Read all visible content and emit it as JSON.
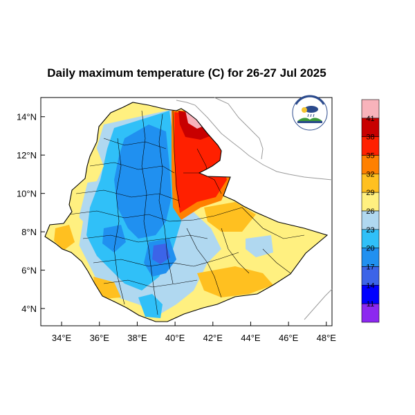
{
  "map": {
    "title": "Daily maximum temperature (C) for 26-27 Jul 2025",
    "x_ticks": [
      "34°E",
      "36°E",
      "38°E",
      "40°E",
      "42°E",
      "44°E",
      "46°E",
      "48°E"
    ],
    "y_ticks": [
      "14°N",
      "12°N",
      "10°N",
      "8°N",
      "6°N",
      "4°N"
    ],
    "x_tick_values": [
      34,
      36,
      38,
      40,
      42,
      44,
      46,
      48
    ],
    "y_tick_values": [
      14,
      12,
      10,
      8,
      6,
      4
    ],
    "lon_range": [
      32.9,
      48.3
    ],
    "lat_range": [
      3.1,
      15.0
    ],
    "colors": {
      "frame": "#000000",
      "boundary": "#000000",
      "neighbor_border": "#9a9a9a",
      "outside": "#ffffff"
    }
  },
  "legend": {
    "labels": [
      "41",
      "38",
      "35",
      "32",
      "29",
      "26",
      "23",
      "20",
      "17",
      "14",
      "11"
    ],
    "colors": [
      "#f8b3bb",
      "#c80000",
      "#ff2000",
      "#ff8000",
      "#ffc020",
      "#fff080",
      "#b0d8f0",
      "#30c0f8",
      "#2090f0",
      "#3c64e8",
      "#0000ff",
      "#8c28f0"
    ]
  },
  "logo": {
    "top_text": "የኢትዮጵያ ሚቲዎሮሎጂ ኢንስቲትዩት",
    "bottom_text": "Ethiopian Meteorological Institute"
  }
}
